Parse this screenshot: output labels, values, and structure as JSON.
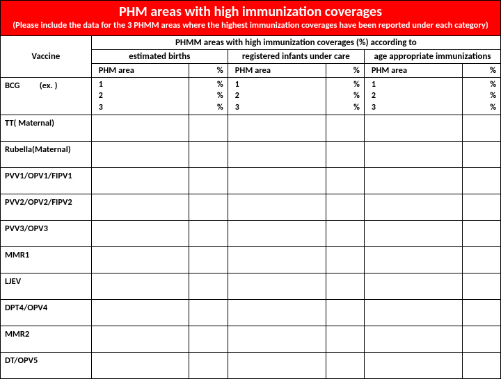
{
  "header": {
    "title": "PHM areas with high immunization coverages",
    "subtitle": "(Please include the  data for the 3 PHMM areas where the highest immunization coverages have  been reported under each category)"
  },
  "columns": {
    "vaccine": "Vaccine",
    "phmm_group": "PHMM areas with high immunization coverages (%) according to",
    "est_group": "estimated births",
    "reg_group": "registered infants under care",
    "age_group": "age appropriate immunizations",
    "phm_area": "PHM  area",
    "pct": "%"
  },
  "example": {
    "label": "(ex. )",
    "nums": [
      "1",
      "2",
      "3"
    ],
    "pcts": [
      "%",
      "%",
      "%"
    ]
  },
  "vaccines": [
    "BCG",
    "TT( Maternal)",
    "Rubella(Maternal)",
    "PVV1/OPV1/FIPV1",
    "PVV2/OPV2/FIPV2",
    "PVV3/OPV3",
    "MMR1",
    "LJEV",
    "DPT4/OPV4",
    "MMR2",
    "DT/OPV5"
  ],
  "colors": {
    "header_bg": "#ff0000",
    "header_text": "#ffffff",
    "border": "#000000",
    "body_bg": "#ffffff"
  }
}
